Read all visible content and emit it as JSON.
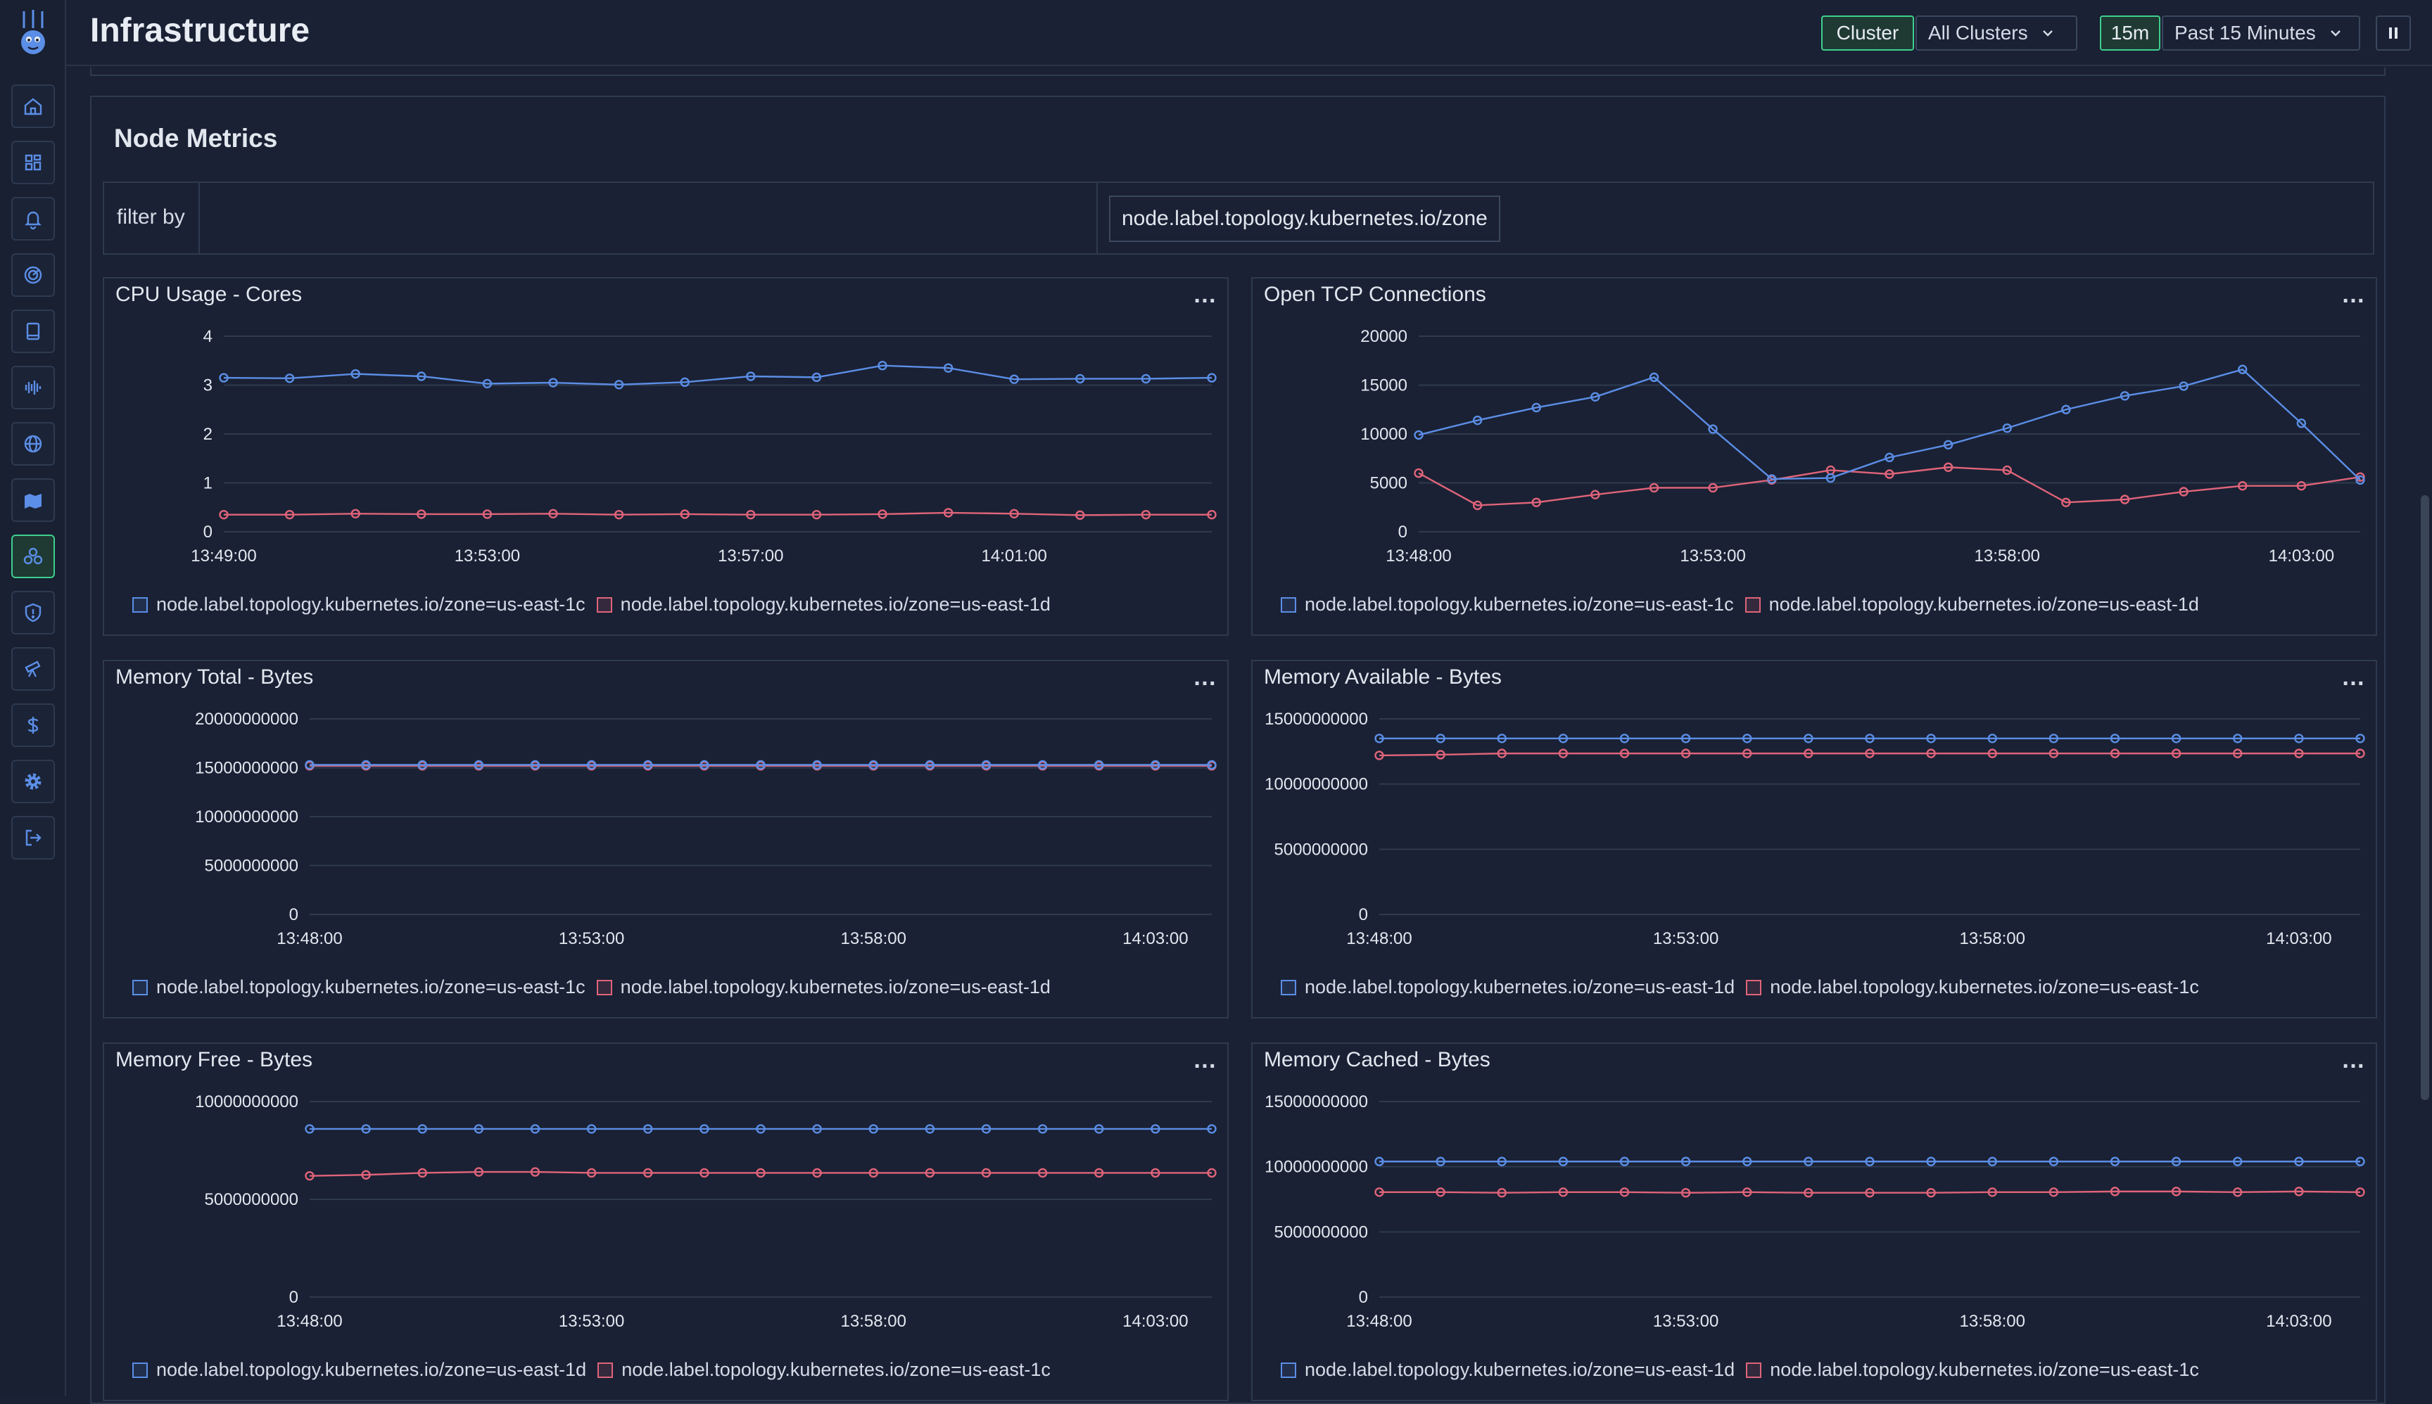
{
  "app": {
    "title": "Infrastructure"
  },
  "header": {
    "cluster_label": "Cluster",
    "cluster_value": "All Clusters",
    "time_short": "15m",
    "time_range": "Past 15 Minutes",
    "pause_icon": "pause-icon"
  },
  "sidebar": {
    "items": [
      {
        "icon": "home-icon"
      },
      {
        "icon": "dashboard-icon"
      },
      {
        "icon": "bell-icon"
      },
      {
        "icon": "radar-icon"
      },
      {
        "icon": "book-icon"
      },
      {
        "icon": "waveform-icon"
      },
      {
        "icon": "globe-icon"
      },
      {
        "icon": "map-icon"
      },
      {
        "icon": "infrastructure-icon",
        "active": true
      },
      {
        "icon": "shield-icon"
      },
      {
        "icon": "telescope-icon"
      },
      {
        "icon": "dollar-icon"
      },
      {
        "icon": "gear-icon"
      },
      {
        "icon": "logout-icon"
      }
    ]
  },
  "section": {
    "title": "Node Metrics"
  },
  "filter": {
    "label": "filter by",
    "value": "node.label.topology.kubernetes.io/zone"
  },
  "colors": {
    "blue": "#5b8ee6",
    "red": "#e0647a",
    "grid": "#2f3a4e",
    "active": "#3ecf8e"
  },
  "chart_data": [
    {
      "type": "line",
      "title": "CPU Usage - Cores",
      "ylim": [
        0,
        4
      ],
      "yticks": [
        "0",
        "1",
        "2",
        "3",
        "4"
      ],
      "xlim": [
        0,
        15
      ],
      "xticks": [
        {
          "at": 0,
          "label": "13:49:00"
        },
        {
          "at": 4,
          "label": "13:53:00"
        },
        {
          "at": 8,
          "label": "13:57:00"
        },
        {
          "at": 12,
          "label": "14:01:00"
        }
      ],
      "series": [
        {
          "name": "node.label.topology.kubernetes.io/zone=us-east-1c",
          "color": "blue",
          "values": [
            3.15,
            3.14,
            3.23,
            3.18,
            3.03,
            3.05,
            3.01,
            3.06,
            3.18,
            3.16,
            3.4,
            3.35,
            3.12,
            3.13,
            3.13,
            3.15
          ]
        },
        {
          "name": "node.label.topology.kubernetes.io/zone=us-east-1d",
          "color": "red",
          "values": [
            0.35,
            0.35,
            0.37,
            0.36,
            0.36,
            0.37,
            0.35,
            0.36,
            0.35,
            0.35,
            0.36,
            0.39,
            0.37,
            0.34,
            0.35,
            0.35
          ]
        }
      ]
    },
    {
      "type": "line",
      "title": "Open TCP Connections",
      "ylim": [
        0,
        20000
      ],
      "yticks": [
        "0",
        "5000",
        "10000",
        "15000",
        "20000"
      ],
      "xlim": [
        0,
        16
      ],
      "xticks": [
        {
          "at": 0,
          "label": "13:48:00"
        },
        {
          "at": 5,
          "label": "13:53:00"
        },
        {
          "at": 10,
          "label": "13:58:00"
        },
        {
          "at": 15,
          "label": "14:03:00"
        }
      ],
      "series": [
        {
          "name": "node.label.topology.kubernetes.io/zone=us-east-1c",
          "color": "blue",
          "values": [
            9900,
            11400,
            12700,
            13800,
            15800,
            10500,
            5400,
            5500,
            7600,
            8900,
            10600,
            12500,
            13900,
            14900,
            16600,
            11100,
            5300
          ]
        },
        {
          "name": "node.label.topology.kubernetes.io/zone=us-east-1d",
          "color": "red",
          "values": [
            6000,
            2700,
            3000,
            3800,
            4500,
            4500,
            5300,
            6300,
            5900,
            6600,
            6300,
            3000,
            3300,
            4100,
            4700,
            4700,
            5600
          ]
        }
      ]
    },
    {
      "type": "line",
      "title": "Memory Total - Bytes",
      "ylim": [
        0,
        20000000000
      ],
      "yticks": [
        "0",
        "5000000000",
        "10000000000",
        "15000000000",
        "20000000000"
      ],
      "xlim": [
        0,
        16
      ],
      "xticks": [
        {
          "at": 0,
          "label": "13:48:00"
        },
        {
          "at": 5,
          "label": "13:53:00"
        },
        {
          "at": 10,
          "label": "13:58:00"
        },
        {
          "at": 15,
          "label": "14:03:00"
        }
      ],
      "series": [
        {
          "name": "node.label.topology.kubernetes.io/zone=us-east-1c",
          "color": "blue",
          "values": [
            15300000000,
            15300000000,
            15300000000,
            15300000000,
            15300000000,
            15300000000,
            15300000000,
            15300000000,
            15300000000,
            15300000000,
            15300000000,
            15300000000,
            15300000000,
            15300000000,
            15300000000,
            15300000000,
            15300000000
          ]
        },
        {
          "name": "node.label.topology.kubernetes.io/zone=us-east-1d",
          "color": "red",
          "values": [
            15200000000,
            15200000000,
            15200000000,
            15200000000,
            15200000000,
            15200000000,
            15200000000,
            15200000000,
            15200000000,
            15200000000,
            15200000000,
            15200000000,
            15200000000,
            15200000000,
            15200000000,
            15200000000,
            15200000000
          ]
        }
      ]
    },
    {
      "type": "line",
      "title": "Memory Available - Bytes",
      "ylim": [
        0,
        15000000000
      ],
      "yticks": [
        "0",
        "5000000000",
        "10000000000",
        "15000000000"
      ],
      "xlim": [
        0,
        16
      ],
      "xticks": [
        {
          "at": 0,
          "label": "13:48:00"
        },
        {
          "at": 5,
          "label": "13:53:00"
        },
        {
          "at": 10,
          "label": "13:58:00"
        },
        {
          "at": 15,
          "label": "14:03:00"
        }
      ],
      "series": [
        {
          "name": "node.label.topology.kubernetes.io/zone=us-east-1d",
          "color": "blue",
          "values": [
            13500000000,
            13500000000,
            13500000000,
            13500000000,
            13500000000,
            13500000000,
            13500000000,
            13500000000,
            13500000000,
            13500000000,
            13500000000,
            13500000000,
            13500000000,
            13500000000,
            13500000000,
            13500000000,
            13500000000
          ]
        },
        {
          "name": "node.label.topology.kubernetes.io/zone=us-east-1c",
          "color": "red",
          "values": [
            12200000000,
            12250000000,
            12350000000,
            12350000000,
            12350000000,
            12350000000,
            12350000000,
            12350000000,
            12350000000,
            12350000000,
            12350000000,
            12350000000,
            12350000000,
            12350000000,
            12350000000,
            12350000000,
            12350000000
          ]
        }
      ]
    },
    {
      "type": "line",
      "title": "Memory Free - Bytes",
      "ylim": [
        0,
        10000000000
      ],
      "yticks": [
        "0",
        "5000000000",
        "10000000000"
      ],
      "xlim": [
        0,
        16
      ],
      "xticks": [
        {
          "at": 0,
          "label": "13:48:00"
        },
        {
          "at": 5,
          "label": "13:53:00"
        },
        {
          "at": 10,
          "label": "13:58:00"
        },
        {
          "at": 15,
          "label": "14:03:00"
        }
      ],
      "series": [
        {
          "name": "node.label.topology.kubernetes.io/zone=us-east-1d",
          "color": "blue",
          "values": [
            8600000000,
            8600000000,
            8600000000,
            8600000000,
            8600000000,
            8600000000,
            8600000000,
            8600000000,
            8600000000,
            8600000000,
            8600000000,
            8600000000,
            8600000000,
            8600000000,
            8600000000,
            8600000000,
            8600000000
          ]
        },
        {
          "name": "node.label.topology.kubernetes.io/zone=us-east-1c",
          "color": "red",
          "values": [
            6200000000,
            6250000000,
            6350000000,
            6400000000,
            6400000000,
            6350000000,
            6350000000,
            6350000000,
            6350000000,
            6350000000,
            6350000000,
            6350000000,
            6350000000,
            6350000000,
            6350000000,
            6350000000,
            6350000000
          ]
        }
      ]
    },
    {
      "type": "line",
      "title": "Memory Cached - Bytes",
      "ylim": [
        0,
        15000000000
      ],
      "yticks": [
        "0",
        "5000000000",
        "10000000000",
        "15000000000"
      ],
      "xlim": [
        0,
        16
      ],
      "xticks": [
        {
          "at": 0,
          "label": "13:48:00"
        },
        {
          "at": 5,
          "label": "13:53:00"
        },
        {
          "at": 10,
          "label": "13:58:00"
        },
        {
          "at": 15,
          "label": "14:03:00"
        }
      ],
      "series": [
        {
          "name": "node.label.topology.kubernetes.io/zone=us-east-1d",
          "color": "blue",
          "values": [
            10400000000,
            10400000000,
            10400000000,
            10400000000,
            10400000000,
            10400000000,
            10400000000,
            10400000000,
            10400000000,
            10400000000,
            10400000000,
            10400000000,
            10400000000,
            10400000000,
            10400000000,
            10400000000,
            10400000000
          ]
        },
        {
          "name": "node.label.topology.kubernetes.io/zone=us-east-1c",
          "color": "red",
          "values": [
            8050000000,
            8050000000,
            8000000000,
            8050000000,
            8050000000,
            8000000000,
            8050000000,
            8000000000,
            8000000000,
            8000000000,
            8050000000,
            8050000000,
            8100000000,
            8100000000,
            8050000000,
            8100000000,
            8050000000
          ]
        }
      ]
    }
  ]
}
